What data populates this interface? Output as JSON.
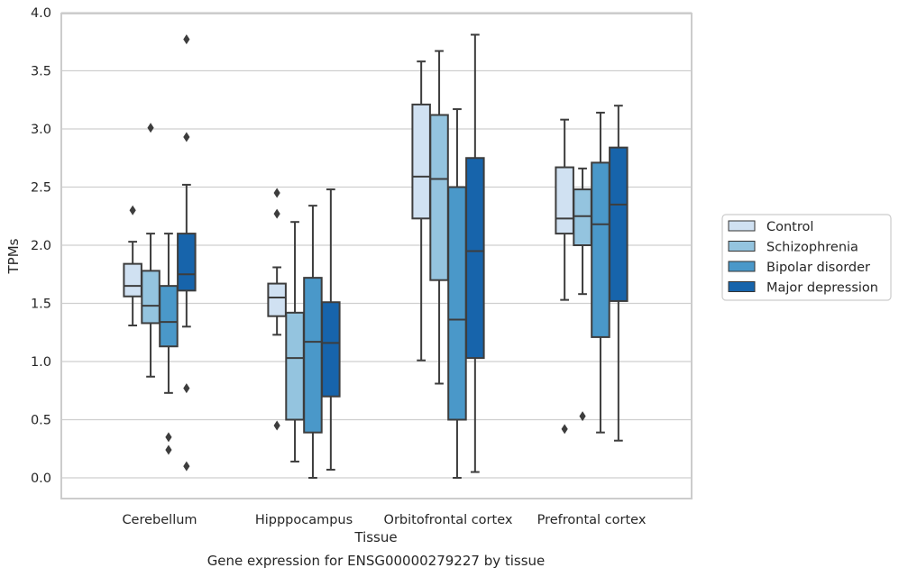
{
  "chart_data": {
    "type": "box",
    "title": "",
    "caption": "Gene expression for ENSG00000279227 by tissue",
    "xlabel": "Tissue",
    "ylabel": "TPMs",
    "ylim": [
      -0.18,
      4.0
    ],
    "yticks": [
      "0.0",
      "0.5",
      "1.0",
      "1.5",
      "2.0",
      "2.5",
      "3.0",
      "3.5",
      "4.0"
    ],
    "grid": true,
    "legend_placement": "right",
    "categories": [
      "Cerebellum",
      "Hipppocampus",
      "Orbitofrontal cortex",
      "Prefrontal cortex"
    ],
    "series": [
      {
        "name": "Control",
        "color": "#d0e1f2",
        "boxes": [
          {
            "whislo": 1.31,
            "q1": 1.56,
            "median": 1.65,
            "q3": 1.84,
            "whishi": 2.03,
            "fliers": [
              2.3
            ]
          },
          {
            "whislo": 1.23,
            "q1": 1.39,
            "median": 1.55,
            "q3": 1.67,
            "whishi": 1.81,
            "fliers": [
              2.45,
              2.27,
              0.45
            ]
          },
          {
            "whislo": 1.01,
            "q1": 2.23,
            "median": 2.59,
            "q3": 3.21,
            "whishi": 3.58,
            "fliers": []
          },
          {
            "whislo": 1.53,
            "q1": 2.1,
            "median": 2.23,
            "q3": 2.67,
            "whishi": 3.08,
            "fliers": [
              0.42
            ]
          }
        ]
      },
      {
        "name": "Schizophrenia",
        "color": "#94c4df",
        "boxes": [
          {
            "whislo": 0.87,
            "q1": 1.33,
            "median": 1.48,
            "q3": 1.78,
            "whishi": 2.1,
            "fliers": [
              3.01
            ]
          },
          {
            "whislo": 0.14,
            "q1": 0.5,
            "median": 1.03,
            "q3": 1.42,
            "whishi": 2.2,
            "fliers": []
          },
          {
            "whislo": 0.81,
            "q1": 1.7,
            "median": 2.57,
            "q3": 3.12,
            "whishi": 3.67,
            "fliers": []
          },
          {
            "whislo": 1.58,
            "q1": 2.0,
            "median": 2.25,
            "q3": 2.48,
            "whishi": 2.66,
            "fliers": [
              0.53
            ]
          }
        ]
      },
      {
        "name": "Bipolar disorder",
        "color": "#4a98c9",
        "boxes": [
          {
            "whislo": 0.73,
            "q1": 1.13,
            "median": 1.34,
            "q3": 1.65,
            "whishi": 2.1,
            "fliers": [
              0.35,
              0.24
            ]
          },
          {
            "whislo": 0.0,
            "q1": 0.39,
            "median": 1.17,
            "q3": 1.72,
            "whishi": 2.34,
            "fliers": []
          },
          {
            "whislo": 0.0,
            "q1": 0.5,
            "median": 1.36,
            "q3": 2.5,
            "whishi": 3.17,
            "fliers": []
          },
          {
            "whislo": 0.39,
            "q1": 1.21,
            "median": 2.18,
            "q3": 2.71,
            "whishi": 3.14,
            "fliers": []
          }
        ]
      },
      {
        "name": "Major depression",
        "color": "#1764ab",
        "boxes": [
          {
            "whislo": 1.3,
            "q1": 1.61,
            "median": 1.75,
            "q3": 2.1,
            "whishi": 2.52,
            "fliers": [
              3.77,
              2.93,
              0.77,
              0.1
            ]
          },
          {
            "whislo": 0.07,
            "q1": 0.7,
            "median": 1.16,
            "q3": 1.51,
            "whishi": 2.48,
            "fliers": []
          },
          {
            "whislo": 0.05,
            "q1": 1.03,
            "median": 1.95,
            "q3": 2.75,
            "whishi": 3.81,
            "fliers": []
          },
          {
            "whislo": 0.32,
            "q1": 1.52,
            "median": 2.35,
            "q3": 2.84,
            "whishi": 3.2,
            "fliers": []
          }
        ]
      }
    ]
  }
}
